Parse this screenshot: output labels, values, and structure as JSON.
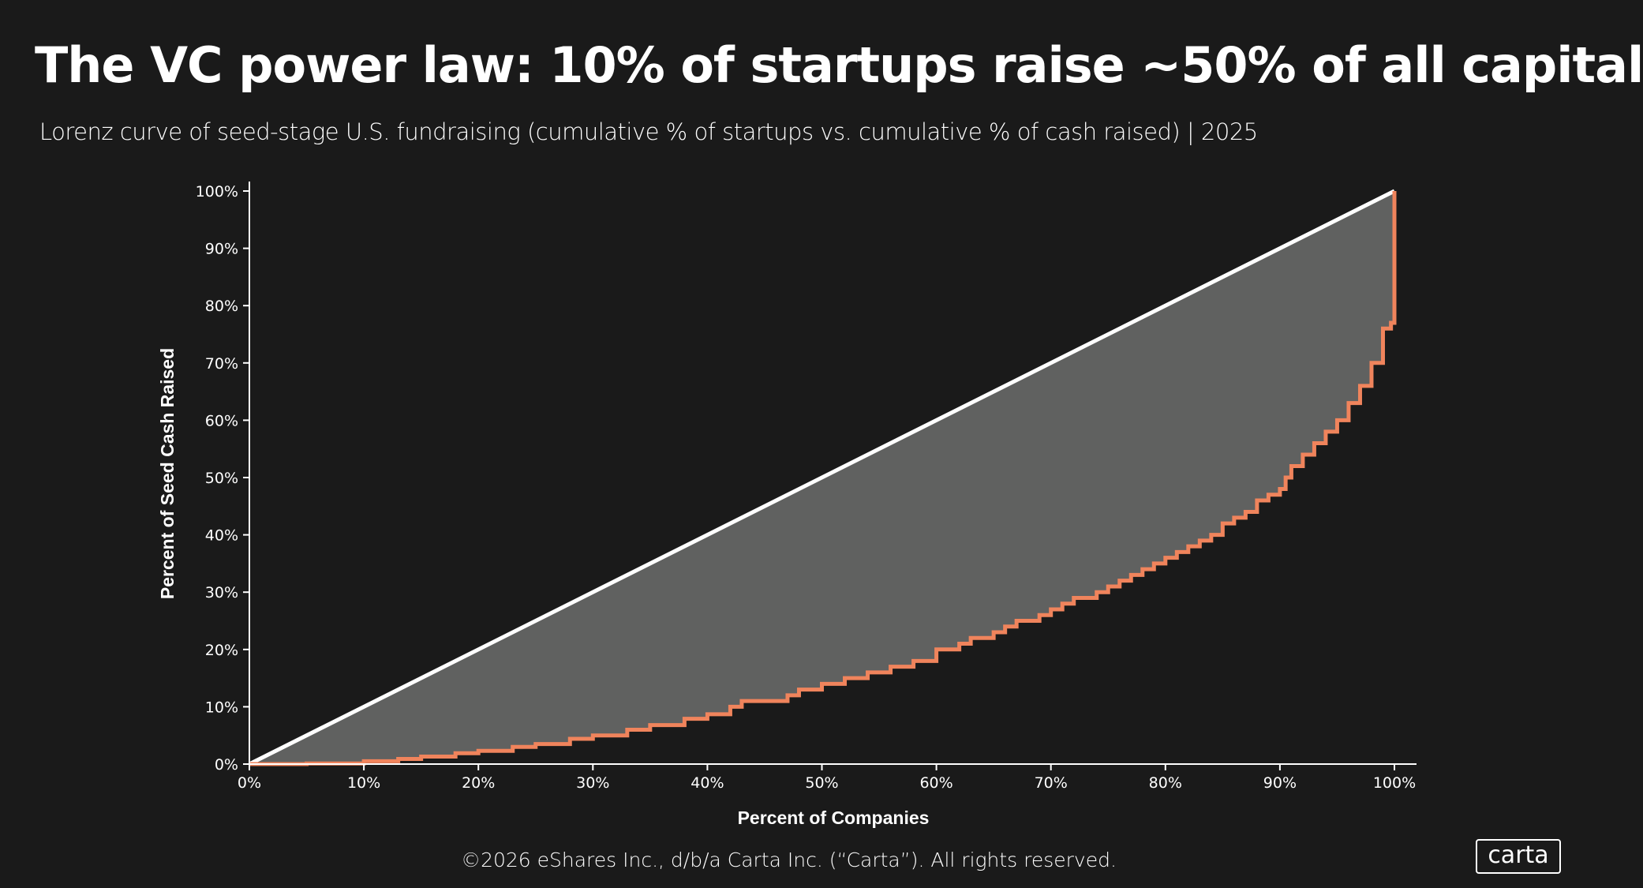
{
  "title": "The VC power law: 10% of startups raise ~50% of all capital",
  "subtitle": "Lorenz curve of seed-stage U.S. fundraising (cumulative % of startups vs. cumulative % of cash raised) | 2025",
  "footer": "©2026 eShares Inc., d/b/a Carta Inc. (“Carta”). All rights reserved.",
  "logo": "carta",
  "colors": {
    "background": "#1a1a1a",
    "curve": "#f0845c",
    "equality_line": "#ffffff",
    "fill": "#606160"
  },
  "chart_data": {
    "type": "line",
    "xlabel": "Percent of Companies",
    "ylabel": "Percent of Seed Cash Raised",
    "xlim": [
      0,
      100
    ],
    "ylim": [
      0,
      100
    ],
    "x_ticks": [
      "0%",
      "10%",
      "20%",
      "30%",
      "40%",
      "50%",
      "60%",
      "70%",
      "80%",
      "90%",
      "100%"
    ],
    "y_ticks": [
      "0%",
      "10%",
      "20%",
      "30%",
      "40%",
      "50%",
      "60%",
      "70%",
      "80%",
      "90%",
      "100%"
    ],
    "grid": false,
    "series": [
      {
        "role": "equality",
        "x": [
          0,
          100
        ],
        "y": [
          0,
          100
        ]
      },
      {
        "role": "lorenz",
        "step": true,
        "x": [
          0,
          5,
          10,
          13,
          15,
          18,
          20,
          23,
          25,
          28,
          30,
          33,
          35,
          38,
          40,
          42,
          43,
          46,
          47,
          48,
          50,
          52,
          54,
          56,
          58,
          60,
          62,
          63,
          65,
          66,
          67,
          69,
          70,
          71,
          72,
          74,
          75,
          76,
          77,
          78,
          79,
          80,
          81,
          82,
          83,
          84,
          85,
          86,
          87,
          88,
          89,
          90,
          90.5,
          91,
          92,
          93,
          94,
          95,
          96,
          97,
          98,
          99,
          99.7,
          100
        ],
        "y": [
          0,
          0.1,
          0.5,
          0.9,
          1.3,
          1.9,
          2.3,
          3,
          3.5,
          4.4,
          5,
          6,
          6.8,
          7.9,
          8.7,
          10,
          11,
          11,
          12,
          13,
          14,
          15,
          16,
          17,
          18,
          20,
          21,
          22,
          23,
          24,
          25,
          26,
          27,
          28,
          29,
          30,
          31,
          32,
          33,
          34,
          35,
          36,
          37,
          38,
          39,
          40,
          42,
          43,
          44,
          46,
          47,
          48,
          50,
          52,
          54,
          56,
          58,
          60,
          63,
          66,
          70,
          76,
          77,
          100
        ]
      }
    ]
  }
}
